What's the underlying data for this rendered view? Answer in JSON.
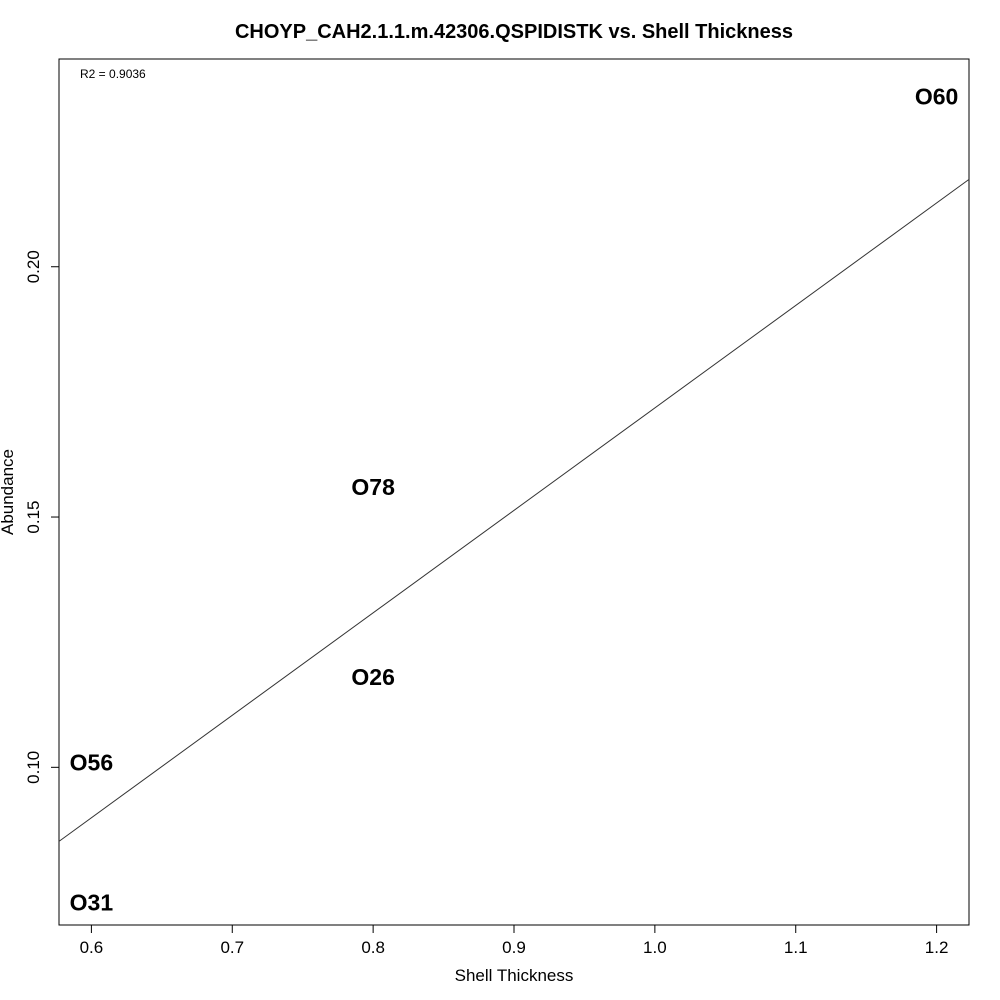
{
  "chart_data": {
    "type": "scatter",
    "title": "CHOYP_CAH2.1.1.m.42306.QSPIDISTK vs. Shell Thickness",
    "xlabel": "Shell Thickness",
    "ylabel": "Abundance",
    "xlim": [
      0.577,
      1.223
    ],
    "ylim": [
      0.0685,
      0.2415
    ],
    "x_ticks": [
      0.6,
      0.7,
      0.8,
      0.9,
      1.0,
      1.1,
      1.2
    ],
    "x_tick_labels": [
      "0.6",
      "0.7",
      "0.8",
      "0.9",
      "1.0",
      "1.1",
      "1.2"
    ],
    "y_ticks": [
      0.1,
      0.15,
      0.2
    ],
    "y_tick_labels": [
      "0.10",
      "0.15",
      "0.20"
    ],
    "grid": false,
    "annotation": "R2 = 0.9036",
    "points": [
      {
        "label": "O60",
        "x": 1.2,
        "y": 0.234
      },
      {
        "label": "O78",
        "x": 0.8,
        "y": 0.156
      },
      {
        "label": "O26",
        "x": 0.8,
        "y": 0.118
      },
      {
        "label": "O56",
        "x": 0.6,
        "y": 0.101
      },
      {
        "label": "O31",
        "x": 0.6,
        "y": 0.073
      }
    ],
    "fit_line": {
      "intercept": -0.0329,
      "slope": 0.2047
    }
  }
}
